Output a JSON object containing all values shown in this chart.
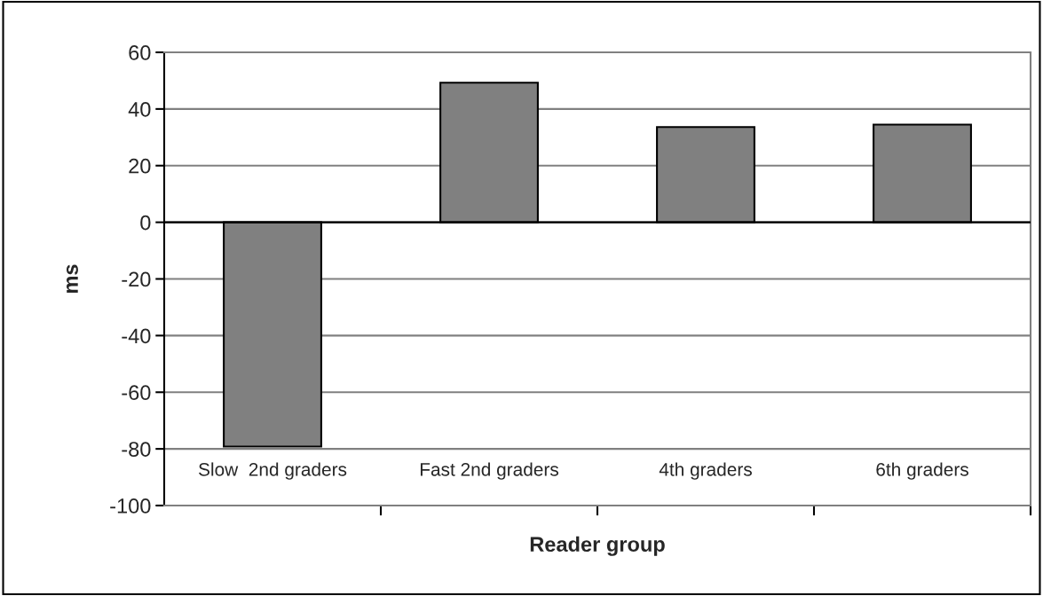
{
  "chart_data": {
    "type": "bar",
    "xlabel": "Reader group",
    "ylabel": "ms",
    "categories": [
      "Slow  2nd graders",
      "Fast 2nd graders",
      "4th graders",
      "6th graders"
    ],
    "values": [
      -79.2,
      49.3,
      33.6,
      34.5
    ],
    "color": "#808080",
    "ylim": [
      -100,
      60
    ],
    "yticks": [
      -100,
      -80,
      -60,
      -40,
      -20,
      0,
      20,
      40,
      60
    ],
    "grid": "y",
    "legend": false
  }
}
